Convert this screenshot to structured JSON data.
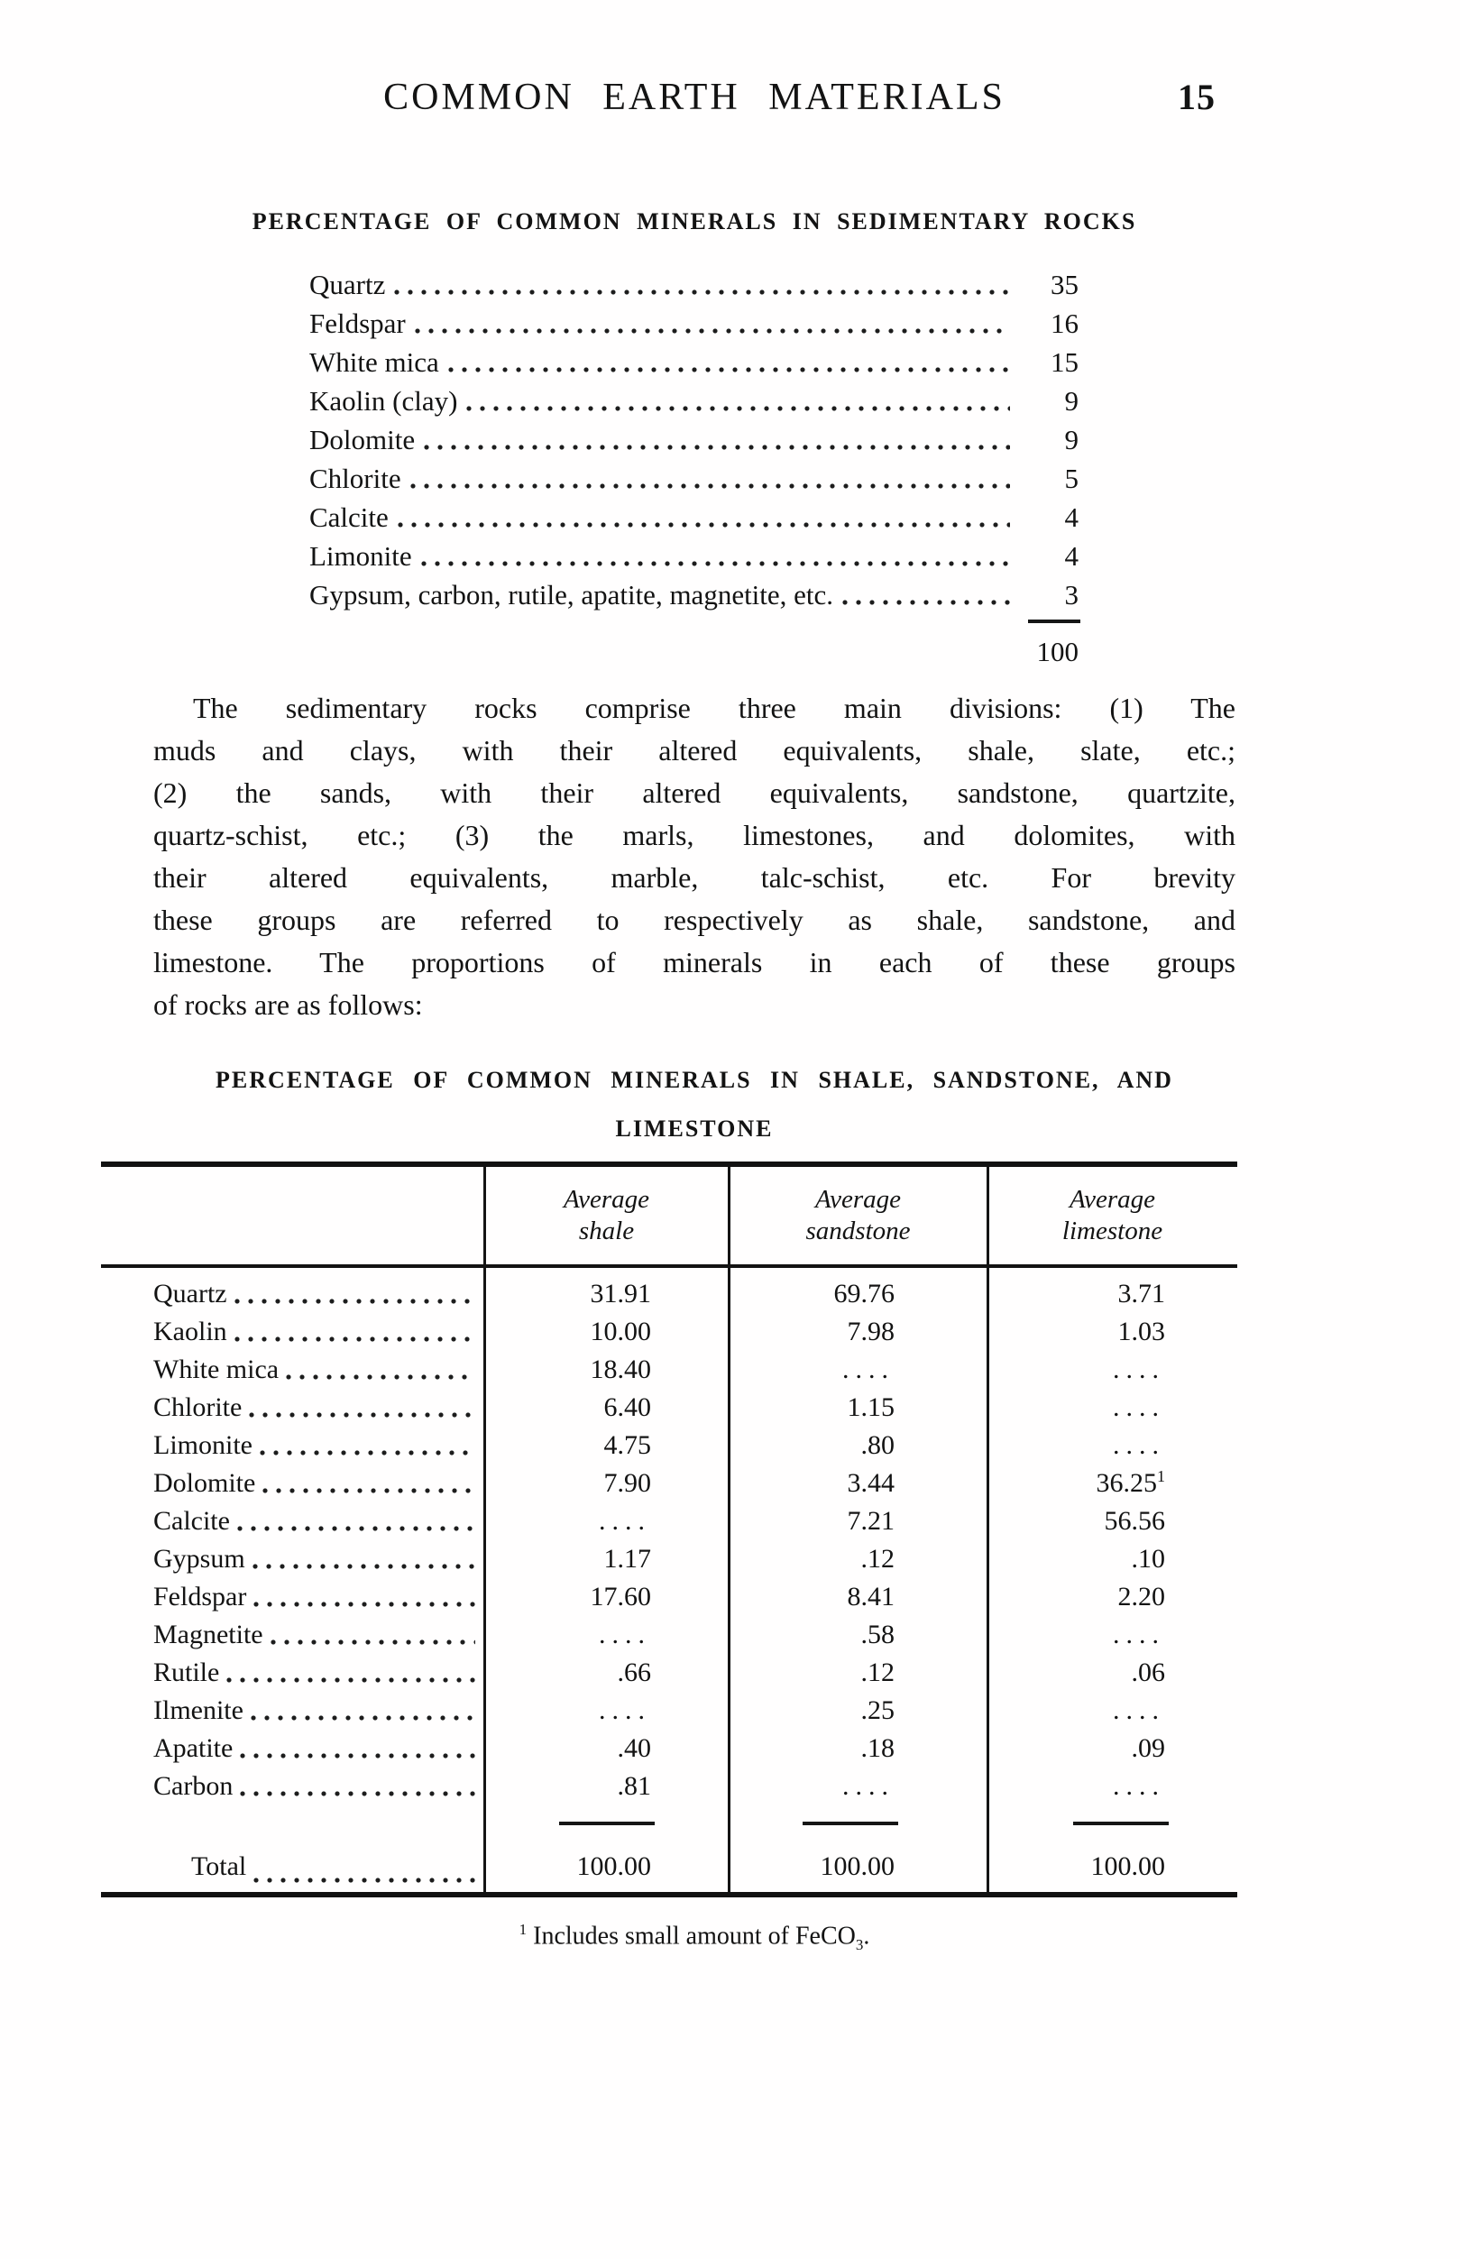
{
  "page": {
    "title": "COMMON EARTH MATERIALS",
    "page_number": "15"
  },
  "list_section": {
    "heading": "PERCENTAGE OF COMMON MINERALS IN SEDIMENTARY ROCKS",
    "items": [
      {
        "label": "Quartz",
        "value": "35"
      },
      {
        "label": "Feldspar",
        "value": "16"
      },
      {
        "label": "White mica",
        "value": "15"
      },
      {
        "label": "Kaolin (clay)",
        "value": "9"
      },
      {
        "label": "Dolomite",
        "value": "9"
      },
      {
        "label": "Chlorite",
        "value": "5"
      },
      {
        "label": "Calcite",
        "value": "4"
      },
      {
        "label": "Limonite",
        "value": "4"
      },
      {
        "label": "Gypsum, carbon, rutile, apatite, magnetite, etc.",
        "value": "3"
      }
    ],
    "total": "100"
  },
  "paragraph": {
    "lines": [
      "The sedimentary rocks comprise three main divisions: (1) The",
      "muds and clays, with their altered equivalents, shale, slate, etc.;",
      "(2) the sands, with their altered equivalents, sandstone, quartzite,",
      "quartz-schist, etc.; (3) the marls, limestones, and dolomites, with",
      "their altered equivalents, marble, talc-schist, etc. For brevity",
      "these groups are referred to respectively as shale, sandstone, and",
      "limestone. The proportions of minerals in each of these groups",
      "of rocks are as follows:"
    ]
  },
  "table_section": {
    "heading_line1": "PERCENTAGE OF COMMON MINERALS IN SHALE, SANDSTONE, AND",
    "heading_line2": "LIMESTONE",
    "col_headers": [
      {
        "line1": "Average",
        "line2": "shale"
      },
      {
        "line1": "Average",
        "line2": "sandstone"
      },
      {
        "line1": "Average",
        "line2": "limestone"
      }
    ],
    "rows": [
      {
        "mineral": "Quartz",
        "shale": "31.91",
        "sandstone": "69.76",
        "limestone": "3.71"
      },
      {
        "mineral": "Kaolin",
        "shale": "10.00",
        "sandstone": "7.98",
        "limestone": "1.03"
      },
      {
        "mineral": "White mica",
        "shale": "18.40",
        "sandstone": "....",
        "limestone": "...."
      },
      {
        "mineral": "Chlorite",
        "shale": "6.40",
        "sandstone": "1.15",
        "limestone": "...."
      },
      {
        "mineral": "Limonite",
        "shale": "4.75",
        "sandstone": ".80",
        "limestone": "...."
      },
      {
        "mineral": "Dolomite",
        "shale": "7.90",
        "sandstone": "3.44",
        "limestone": "36.25",
        "limestone_sup": "1"
      },
      {
        "mineral": "Calcite",
        "shale": "....",
        "sandstone": "7.21",
        "limestone": "56.56"
      },
      {
        "mineral": "Gypsum",
        "shale": "1.17",
        "sandstone": ".12",
        "limestone": ".10"
      },
      {
        "mineral": "Feldspar",
        "shale": "17.60",
        "sandstone": "8.41",
        "limestone": "2.20"
      },
      {
        "mineral": "Magnetite",
        "shale": "....",
        "sandstone": ".58",
        "limestone": "...."
      },
      {
        "mineral": "Rutile",
        "shale": ".66",
        "sandstone": ".12",
        "limestone": ".06"
      },
      {
        "mineral": "Ilmenite",
        "shale": "....",
        "sandstone": ".25",
        "limestone": "...."
      },
      {
        "mineral": "Apatite",
        "shale": ".40",
        "sandstone": ".18",
        "limestone": ".09"
      },
      {
        "mineral": "Carbon",
        "shale": ".81",
        "sandstone": "....",
        "limestone": "...."
      }
    ],
    "total_row": {
      "label": "Total",
      "shale": "100.00",
      "sandstone": "100.00",
      "limestone": "100.00"
    },
    "footnote": {
      "marker": "1",
      "text": "Includes small amount of FeCO",
      "subscript": "3",
      "suffix": "."
    }
  }
}
